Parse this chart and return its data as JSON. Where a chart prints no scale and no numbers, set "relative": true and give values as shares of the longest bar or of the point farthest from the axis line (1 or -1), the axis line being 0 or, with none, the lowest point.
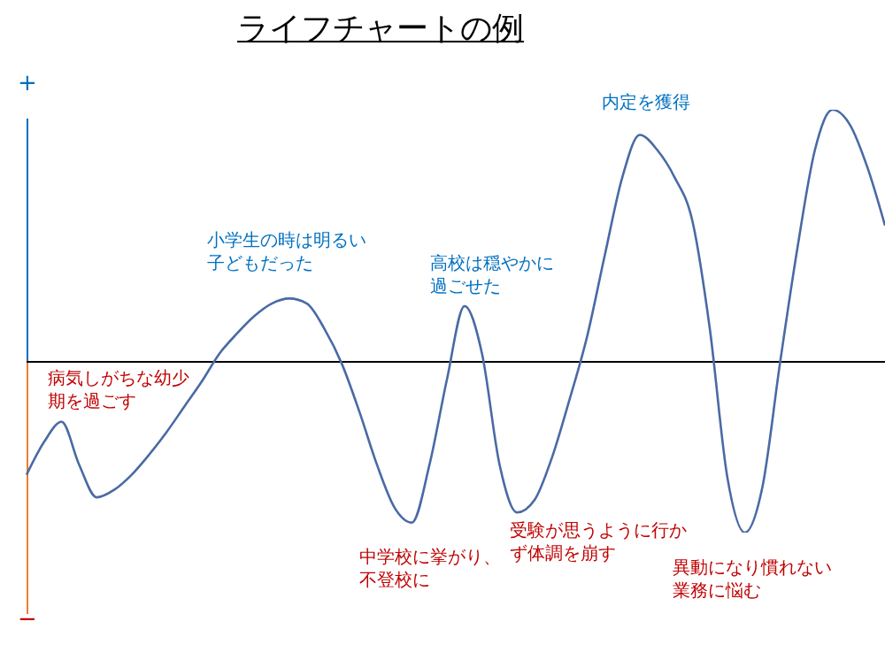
{
  "chart_data": {
    "type": "line",
    "title": "ライフチャートの例",
    "relative": true,
    "color": "#4a6aa5",
    "marker": "none",
    "categories": [
      null,
      null,
      null,
      null,
      null,
      null,
      null,
      null,
      null,
      null,
      null,
      null,
      null,
      null,
      null,
      null,
      null,
      null,
      null,
      null,
      null,
      null,
      null,
      null,
      null,
      null,
      null,
      null,
      null,
      null,
      null,
      null,
      null,
      null,
      null,
      null,
      null,
      null,
      null,
      null,
      null,
      null,
      null,
      null,
      null,
      null,
      null,
      null,
      null,
      null
    ],
    "values": [
      -0.45,
      -0.32,
      -0.24,
      -0.41,
      -0.54,
      -0.51,
      -0.45,
      -0.37,
      -0.28,
      -0.18,
      -0.08,
      0.03,
      0.11,
      0.18,
      0.23,
      0.25,
      0.23,
      0.13,
      -0.01,
      -0.2,
      -0.41,
      -0.58,
      -0.64,
      -0.41,
      -0.07,
      0.22,
      0.03,
      -0.41,
      -0.6,
      -0.55,
      -0.38,
      -0.15,
      0.1,
      0.42,
      0.73,
      0.9,
      0.84,
      0.73,
      0.56,
      0.13,
      -0.46,
      -0.68,
      -0.5,
      -0.01,
      0.45,
      0.84,
      1,
      0.94,
      0.77,
      0.54
    ],
    "annotations": [
      "+",
      "−",
      "病気しがちな幼少期を過ごす",
      "小学生の時は明るい子どもだった",
      "中学校に挙がり、不登校に",
      "高校は穏やかに過ごせた",
      "受験が思うように行かず体調を崩す",
      "内定を獲得",
      "異動になり慣れない業務に悩む"
    ]
  }
}
